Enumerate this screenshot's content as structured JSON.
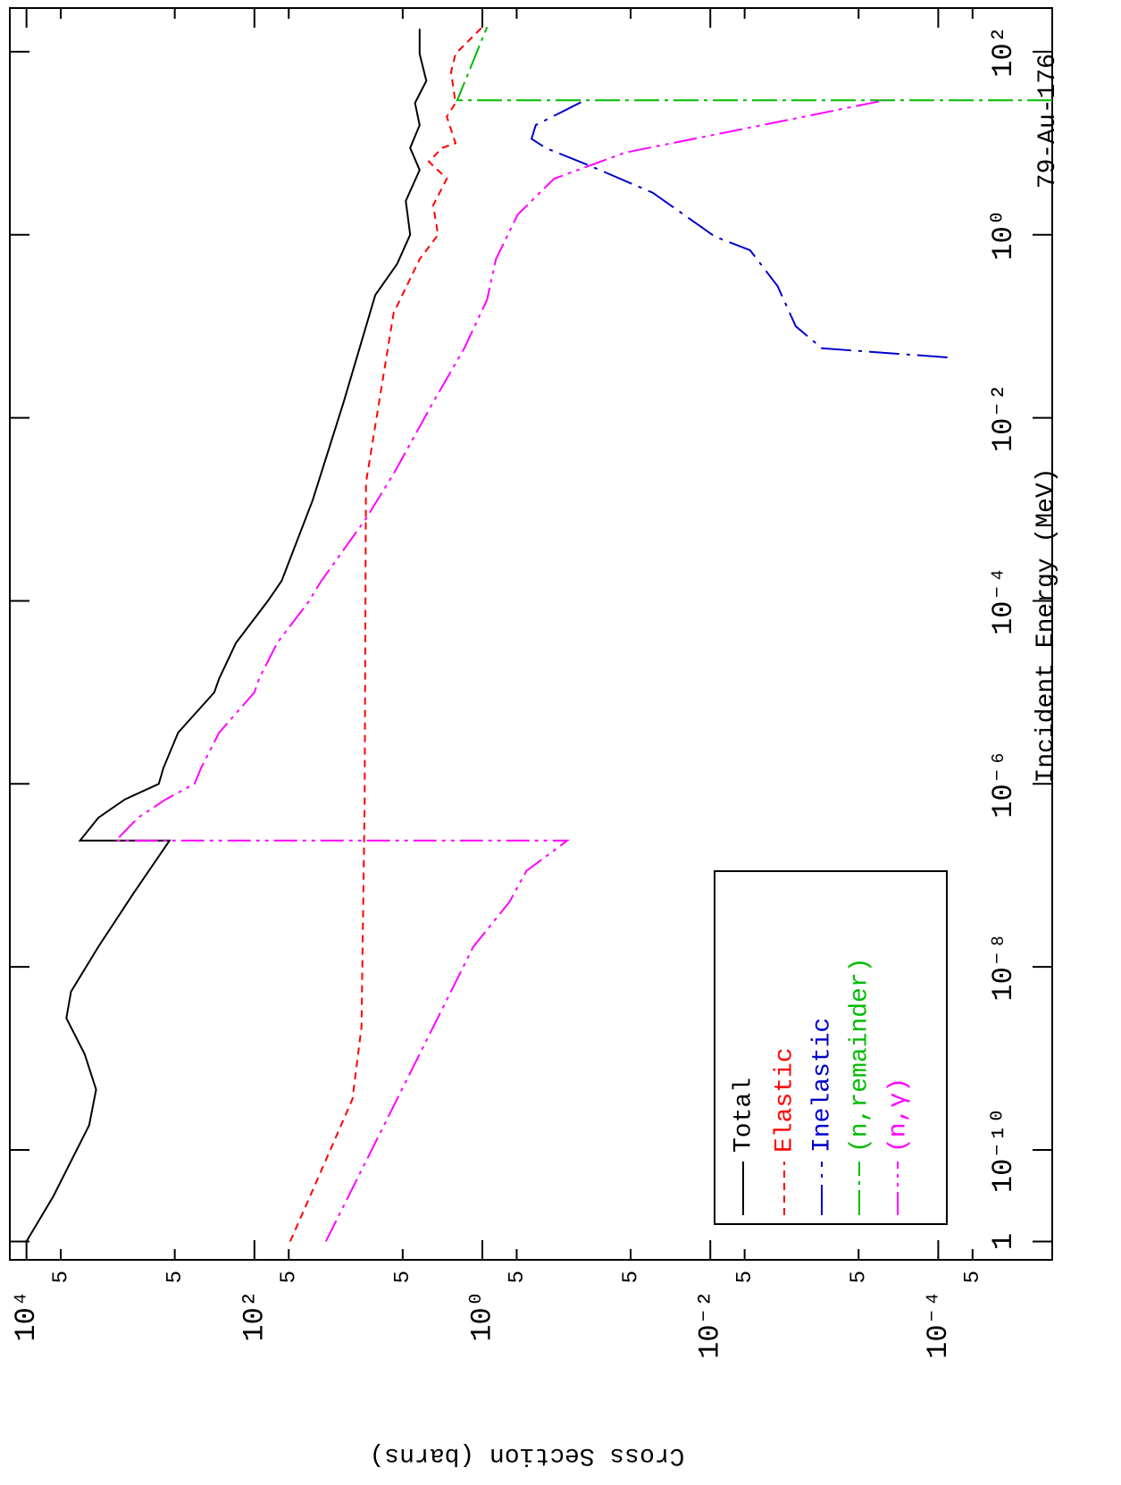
{
  "chart_data": {
    "type": "line",
    "title": "79-Au-176",
    "x_label": "Incident Energy (MeV)",
    "y_label": "Cross Section (barns)",
    "xscale": "log",
    "yscale": "log",
    "xlim": [
      6.3e-12,
      300
    ],
    "ylim": [
      1e-05,
      14000
    ],
    "xticks": [
      {
        "value": 1e-11,
        "label": "1"
      },
      {
        "value": 1e-10,
        "label": "10⁻¹⁰"
      },
      {
        "value": 1e-08,
        "label": "10⁻⁸"
      },
      {
        "value": 1e-06,
        "label": "10⁻⁶"
      },
      {
        "value": 0.0001,
        "label": "10⁻⁴"
      },
      {
        "value": 0.01,
        "label": "10⁻²"
      },
      {
        "value": 1,
        "label": "10⁰"
      },
      {
        "value": 100,
        "label": "10²"
      }
    ],
    "yticks": [
      {
        "value": 10000,
        "label": "10⁴"
      },
      {
        "value": 5000,
        "label": "5"
      },
      {
        "value": 100,
        "label": "10²"
      },
      {
        "value": 500,
        "label": "5"
      },
      {
        "value": 50,
        "label": "5"
      },
      {
        "value": 1,
        "label": "10⁰"
      },
      5,
      {
        "value": 0.5,
        "label": "5"
      },
      {
        "value": 0.01,
        "label": "10⁻²"
      },
      {
        "value": 0.05,
        "label": "5"
      },
      {
        "value": 0.005,
        "label": "5"
      },
      {
        "value": 0.0001,
        "label": "10⁻⁴"
      },
      {
        "value": 0.0005,
        "label": "5"
      },
      {
        "value": 5e-05,
        "label": "5"
      }
    ],
    "legend": "lower left",
    "series": [
      {
        "name": "Total",
        "color": "#000000",
        "dash": "none",
        "x": [
          1e-11,
          3.1e-11,
          1.86e-10,
          4.57e-10,
          1.12e-09,
          2.75e-09,
          5.37e-09,
          1.66e-08,
          6.38e-08,
          2.4e-07,
          2.4e-07,
          4.27e-07,
          6.76e-07,
          1e-06,
          1.48e-06,
          3.63e-06,
          1e-05,
          1.41e-05,
          3.47e-05,
          0.0001,
          0.000166,
          0.00126,
          0.0148,
          0.219,
          0.48,
          1.0,
          2.34,
          5.1,
          8.9,
          15.8,
          27.5,
          48,
          95,
          178
        ],
        "values": [
          10000,
          5820,
          2820,
          2450,
          3090,
          4470,
          4070,
          2340,
          1150,
          556,
          3390,
          2340,
          1370,
          690,
          630,
          467,
          225,
          204,
          145,
          76,
          57.6,
          30.8,
          16.5,
          8.7,
          5.6,
          4.3,
          4.7,
          3.55,
          4.3,
          3.55,
          3.9,
          3.1,
          3.55,
          3.55
        ]
      },
      {
        "name": "Elastic",
        "color": "#ff0000",
        "dash": "8 6",
        "x": [
          1e-11,
          6e-11,
          3.6e-10,
          2.2e-09,
          6e-07,
          0.00195,
          0.14,
          0.54,
          1.0,
          2.1,
          4.1,
          6.3,
          8.9,
          10,
          19.5,
          27.5,
          60,
          95,
          186
        ],
        "values": [
          48.5,
          25.8,
          13.8,
          11.5,
          10.8,
          10.5,
          6.0,
          3.55,
          2.45,
          2.7,
          2.05,
          2.95,
          2.25,
          1.72,
          2.05,
          1.72,
          1.88,
          1.72,
          1.0
        ]
      },
      {
        "name": "Inelastic",
        "color": "#0000cc",
        "dash": "34 8 4 8",
        "x": [
          0.0457,
          0.0575,
          0.1,
          0.275,
          0.676,
          0.955,
          2.88,
          5.7,
          8.9,
          11.2,
          15.8,
          29.5
        ],
        "values": [
          8.3e-05,
          0.00105,
          0.00178,
          0.00257,
          0.00447,
          0.0091,
          0.032,
          0.115,
          0.28,
          0.37,
          0.34,
          0.126
        ]
      },
      {
        "name": "(n,remainder)",
        "color": "#00bb00",
        "dash": "28 6 4 6",
        "x": [
          29.5,
          29.5,
          186
        ],
        "values": [
          1e-05,
          1.66,
          0.91
        ]
      },
      {
        "name": "(n,γ)",
        "color": "#ff00ff",
        "dash": "26 6 4 6 4 6",
        "x": [
          1e-11,
          1.66e-08,
          5.1e-08,
          1.12e-07,
          2.4e-07,
          2.4e-07,
          4.27e-07,
          6.76e-07,
          1e-06,
          1.48e-06,
          3.63e-06,
          1e-05,
          1.41e-05,
          3.47e-05,
          9.5e-05,
          0.000166,
          0.00079,
          0.00245,
          0.0148,
          0.0575,
          0.195,
          0.54,
          1.66,
          4.1,
          7.9,
          19.5,
          29.5
        ],
        "values": [
          23.6,
          1.2,
          0.58,
          0.41,
          0.18,
          1645,
          1050,
          600,
          335,
          295,
          204,
          100,
          91,
          63,
          34,
          25.8,
          10.5,
          6.0,
          2.7,
          1.44,
          0.91,
          0.76,
          0.49,
          0.235,
          0.056,
          0.0015,
          0.000295
        ]
      }
    ]
  }
}
